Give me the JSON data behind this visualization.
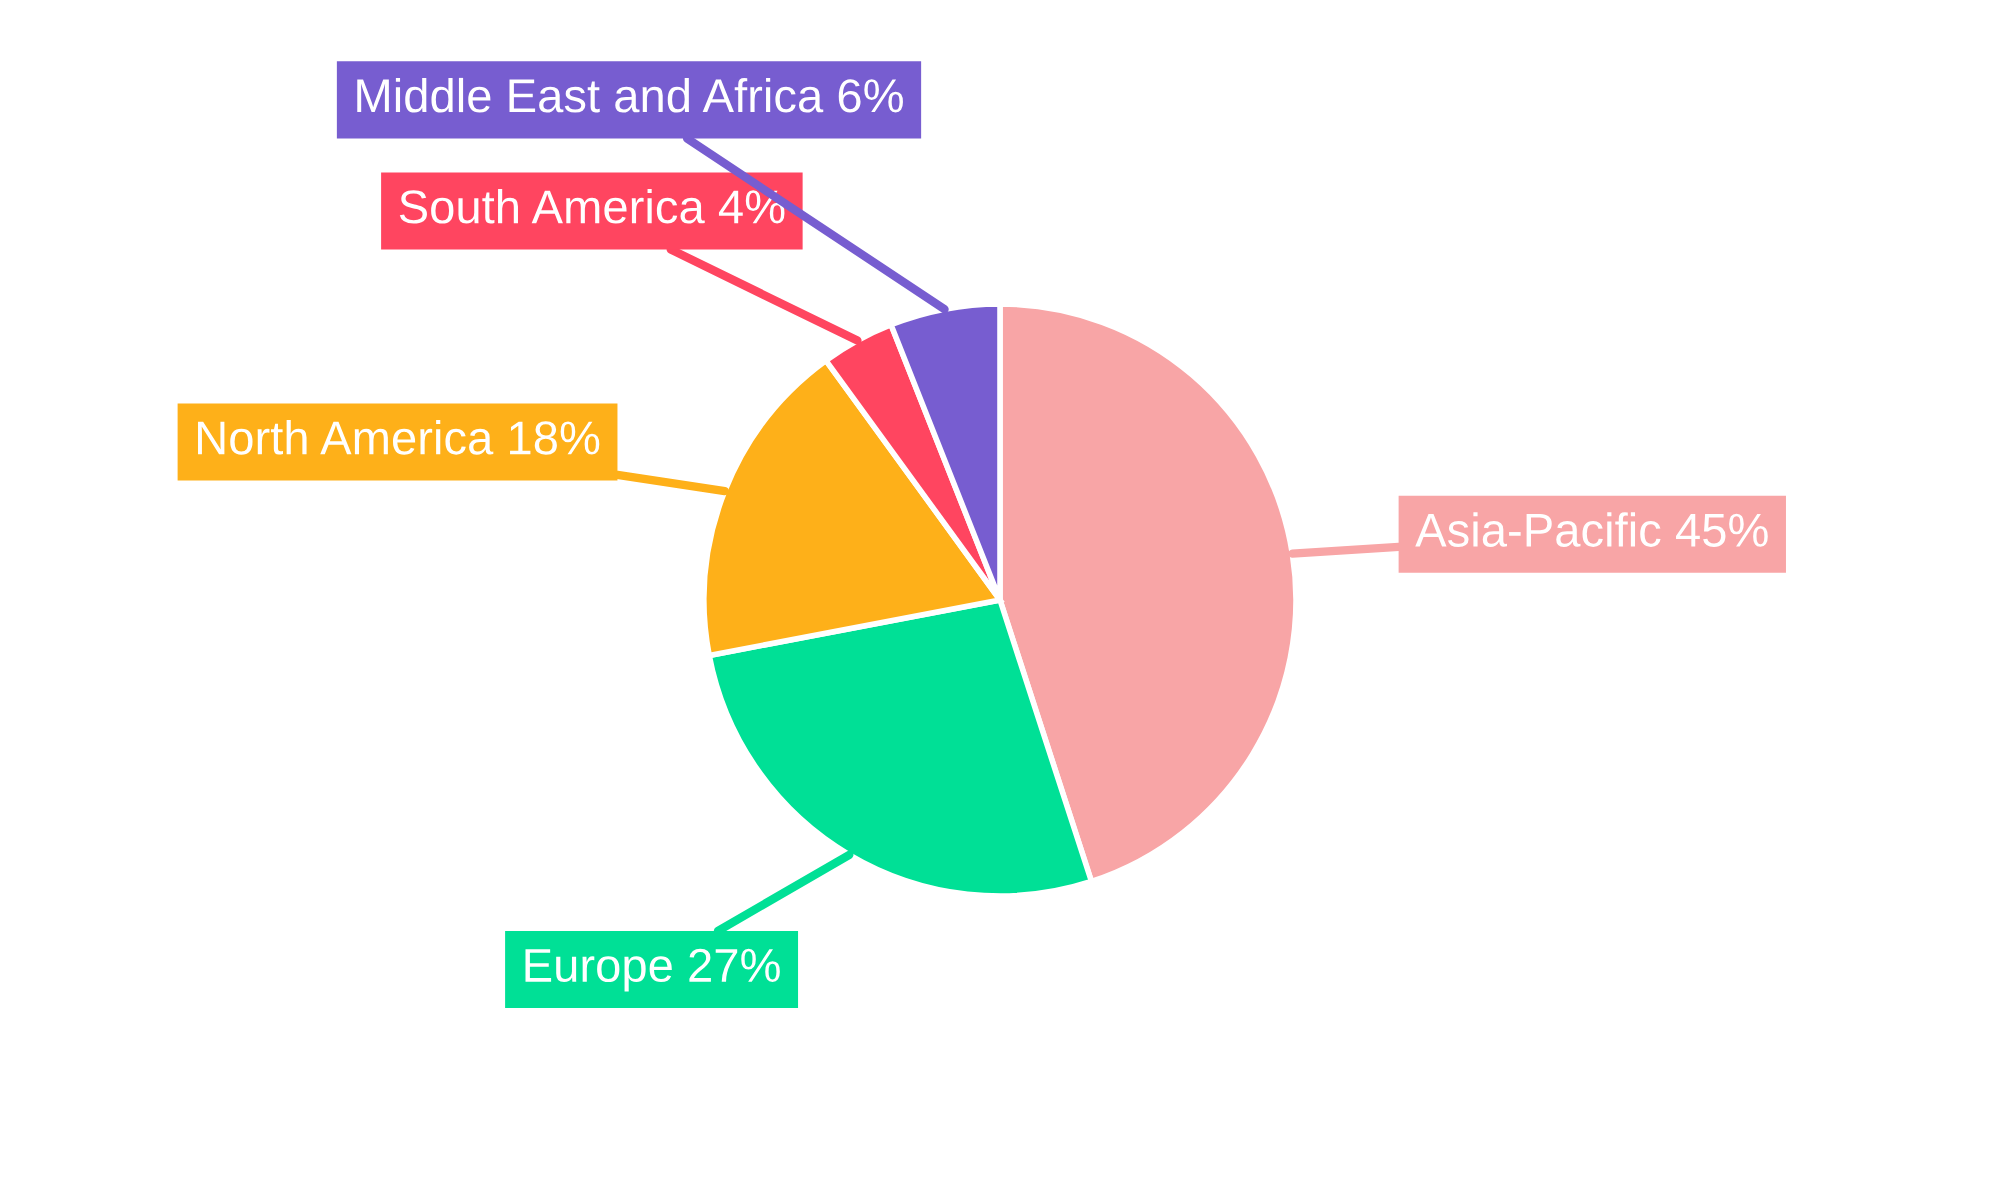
{
  "chart_data": {
    "type": "pie",
    "categories": [
      "Asia-Pacific",
      "Europe",
      "North America",
      "South America",
      "Middle East and Africa"
    ],
    "values": [
      45,
      27,
      18,
      4,
      6
    ],
    "value_labels": [
      "45%",
      "27%",
      "18%",
      "4%",
      "6%"
    ],
    "colors": [
      "#f8a5a6",
      "#00e096",
      "#feb019",
      "#ff4560",
      "#775dd0"
    ],
    "legend": false
  }
}
